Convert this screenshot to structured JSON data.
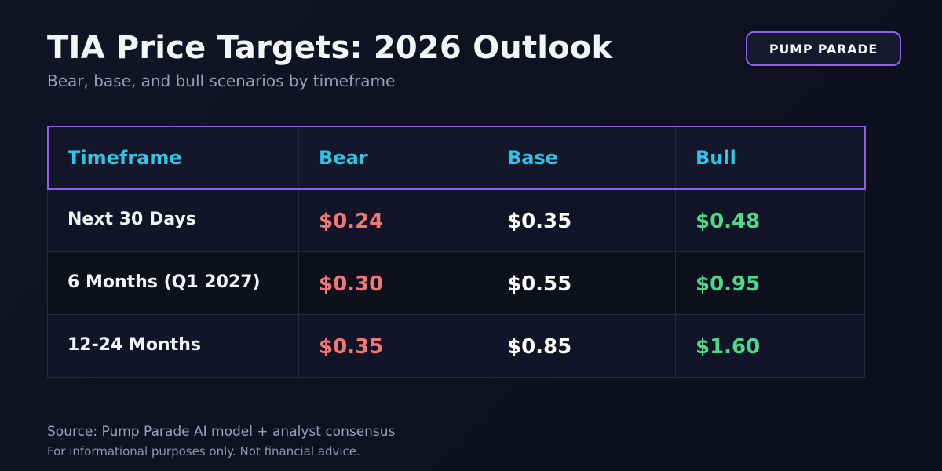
{
  "header": {
    "title": "TIA Price Targets: 2026 Outlook",
    "subtitle": "Bear, base, and bull scenarios by timeframe",
    "badge": "PUMP PARADE"
  },
  "table": {
    "columns": [
      "Timeframe",
      "Bear",
      "Base",
      "Bull"
    ],
    "rows": [
      {
        "timeframe": "Next 30 Days",
        "bear": "$0.24",
        "base": "$0.35",
        "bull": "$0.48"
      },
      {
        "timeframe": "6 Months (Q1 2027)",
        "bear": "$0.30",
        "base": "$0.55",
        "bull": "$0.95"
      },
      {
        "timeframe": "12-24 Months",
        "bear": "$0.35",
        "base": "$0.85",
        "bull": "$1.60"
      }
    ]
  },
  "footer": {
    "source": "Source: Pump Parade AI model + analyst consensus",
    "disclaimer": "For informational purposes only. Not financial advice."
  },
  "colors": {
    "background": "#0f1120",
    "accent_border": "#8e62e8",
    "header_text": "#2bc8e8",
    "bear": "#f27676",
    "base": "#ffffff",
    "bull": "#4cd98a",
    "muted_text": "#9aa0b6"
  }
}
